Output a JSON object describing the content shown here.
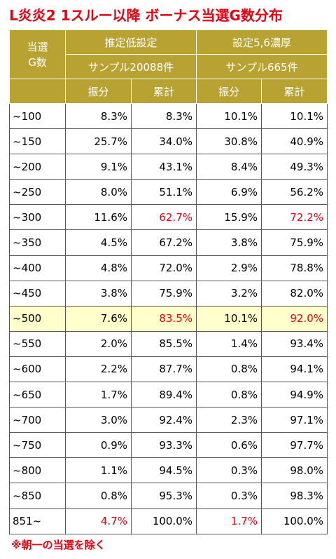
{
  "title": "L炎炎2 1スルー以降 ボーナス当選G数分布",
  "table": {
    "corner": "当選\nG数",
    "groups": [
      "推定低設定",
      "設定5,6濃厚"
    ],
    "samples": [
      "サンプル20088件",
      "サンプル665件"
    ],
    "subheaders": [
      "振分",
      "累計",
      "振分",
      "累計"
    ],
    "rows": [
      [
        "~100",
        "8.3%",
        "8.3%",
        "10.1%",
        "10.1%"
      ],
      [
        "~150",
        "25.7%",
        "34.0%",
        "30.8%",
        "40.9%"
      ],
      [
        "~200",
        "9.1%",
        "43.1%",
        "8.4%",
        "49.3%"
      ],
      [
        "~250",
        "8.0%",
        "51.1%",
        "6.9%",
        "56.2%"
      ],
      [
        "~300",
        "11.6%",
        "62.7%",
        "15.9%",
        "72.2%"
      ],
      [
        "~350",
        "4.5%",
        "67.2%",
        "3.8%",
        "75.9%"
      ],
      [
        "~400",
        "4.8%",
        "72.0%",
        "2.9%",
        "78.8%"
      ],
      [
        "~450",
        "3.8%",
        "75.9%",
        "3.2%",
        "82.0%"
      ],
      [
        "~500",
        "7.6%",
        "83.5%",
        "10.1%",
        "92.0%"
      ],
      [
        "~550",
        "2.0%",
        "85.5%",
        "1.4%",
        "93.4%"
      ],
      [
        "~600",
        "2.2%",
        "87.7%",
        "0.8%",
        "94.1%"
      ],
      [
        "~650",
        "1.7%",
        "89.4%",
        "0.8%",
        "94.9%"
      ],
      [
        "~700",
        "3.0%",
        "92.4%",
        "2.3%",
        "97.1%"
      ],
      [
        "~750",
        "0.9%",
        "93.3%",
        "0.6%",
        "97.7%"
      ],
      [
        "~800",
        "1.1%",
        "94.5%",
        "0.3%",
        "98.0%"
      ],
      [
        "~850",
        "0.8%",
        "95.3%",
        "0.3%",
        "98.3%"
      ],
      [
        "851~",
        "4.7%",
        "100.0%",
        "1.7%",
        "100.0%"
      ]
    ],
    "highlight_row": 8,
    "red_cells": [
      [
        4,
        2
      ],
      [
        4,
        4
      ],
      [
        8,
        2
      ],
      [
        8,
        4
      ],
      [
        16,
        1
      ],
      [
        16,
        3
      ]
    ]
  },
  "note": "※朝一の当選を除く"
}
